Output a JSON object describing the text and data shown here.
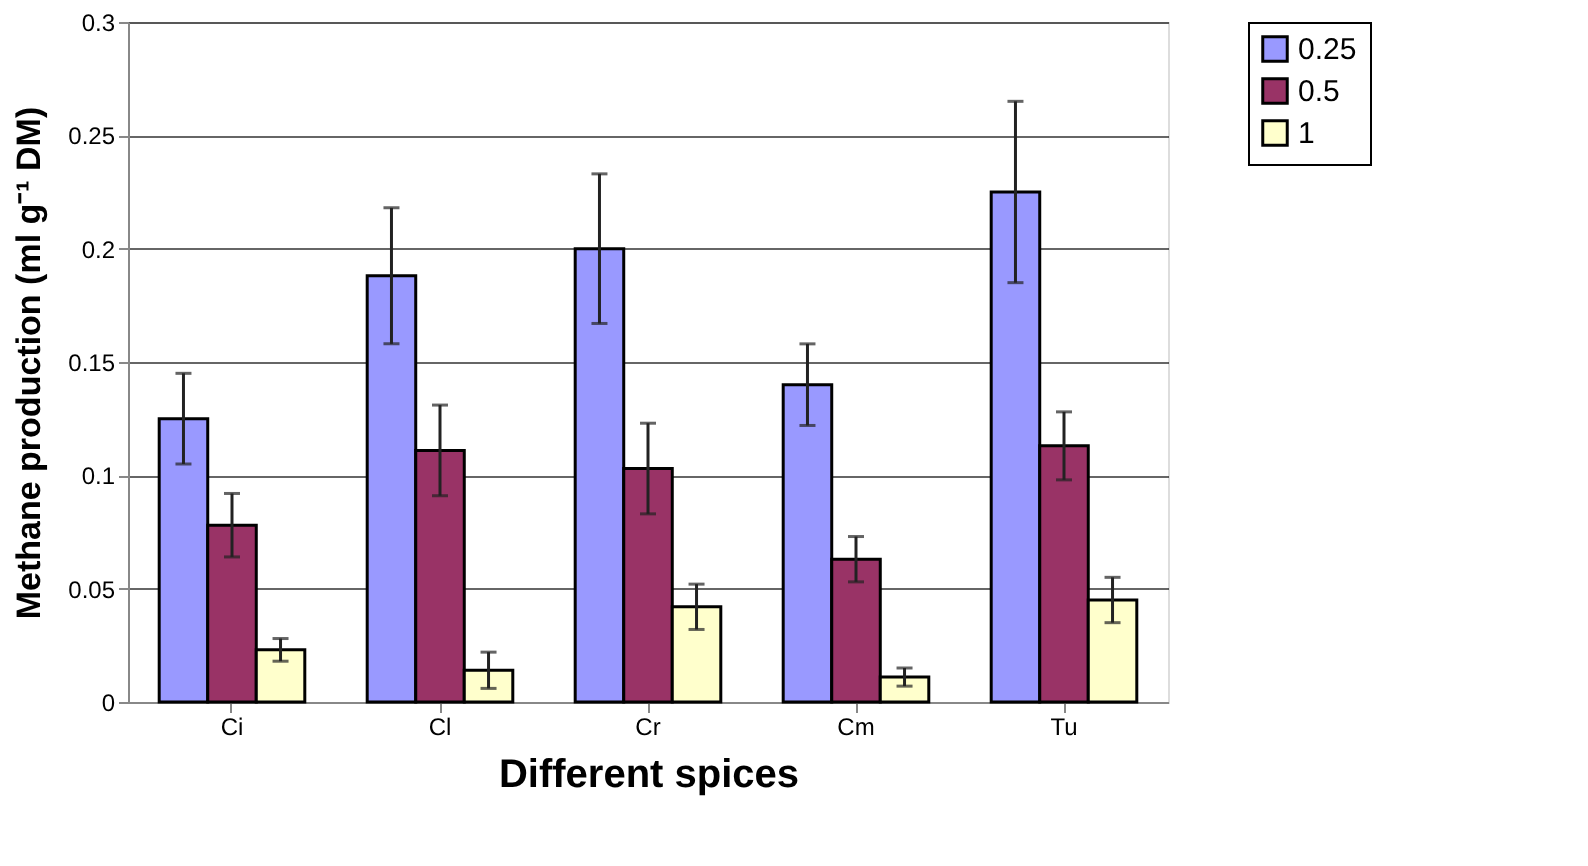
{
  "chart_data": {
    "type": "bar",
    "xlabel": "Different spices",
    "ylabel": "Methane production (ml g⁻¹ DM)",
    "categories": [
      "Ci",
      "Cl",
      "Cr",
      "Cm",
      "Tu"
    ],
    "series": [
      {
        "name": "0.25",
        "color": "#9999ff",
        "values": [
          0.125,
          0.188,
          0.2,
          0.14,
          0.225
        ],
        "errors": [
          0.02,
          0.03,
          0.033,
          0.018,
          0.04
        ]
      },
      {
        "name": "0.5",
        "color": "#993366",
        "values": [
          0.078,
          0.111,
          0.103,
          0.063,
          0.113
        ],
        "errors": [
          0.014,
          0.02,
          0.02,
          0.01,
          0.015
        ]
      },
      {
        "name": "1",
        "color": "#ffffcc",
        "values": [
          0.023,
          0.014,
          0.042,
          0.011,
          0.045
        ],
        "errors": [
          0.005,
          0.008,
          0.01,
          0.004,
          0.01
        ]
      }
    ],
    "ylim": [
      0,
      0.3
    ],
    "yticks": [
      0,
      0.05,
      0.1,
      0.15,
      0.2,
      0.25,
      0.3
    ],
    "grid": "y",
    "legend": "top right"
  }
}
